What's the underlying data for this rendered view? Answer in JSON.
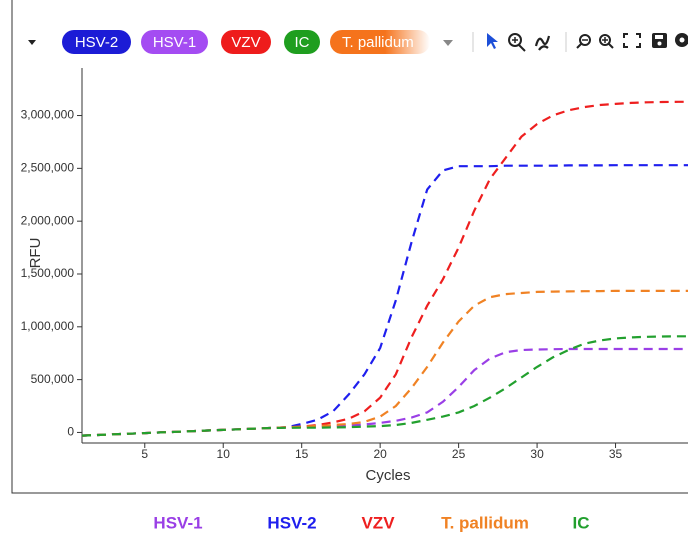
{
  "toolbar": {
    "chips": [
      {
        "label": "HSV-2",
        "color": "#1c1cd6"
      },
      {
        "label": "HSV-1",
        "color": "#a44cf2"
      },
      {
        "label": "VZV",
        "color": "#ee1c1c"
      },
      {
        "label": "IC",
        "color": "#1f9e1f"
      },
      {
        "label": "T. pallidum",
        "color": "#f5731c"
      }
    ]
  },
  "chart_data": {
    "type": "line",
    "x_label": "Cycles",
    "y_label": "RFU",
    "x": [
      1,
      2,
      3,
      4,
      5,
      6,
      7,
      8,
      9,
      10,
      11,
      12,
      13,
      14,
      15,
      16,
      17,
      18,
      19,
      20,
      21,
      22,
      23,
      24,
      25,
      26,
      27,
      28,
      29,
      30,
      31,
      32,
      33,
      34,
      35,
      36,
      37,
      38,
      39,
      40
    ],
    "xlim": [
      1,
      40
    ],
    "xticks": [
      5,
      10,
      15,
      20,
      25,
      30,
      35
    ],
    "ylim": [
      -100000,
      3450000
    ],
    "yticks": [
      0,
      {
        "value": 500000,
        "label": "500,000"
      },
      {
        "value": 1000000,
        "label": "1,000,000"
      },
      {
        "value": 1500000,
        "label": "1,500,000"
      },
      {
        "value": 2000000,
        "label": "2,000,000"
      },
      {
        "value": 2500000,
        "label": "2,500,000"
      },
      {
        "value": 3000000,
        "label": "3,000,000"
      }
    ],
    "series": [
      {
        "name": "HSV-1",
        "color": "#9a3fe6",
        "values": [
          -30000,
          -24000,
          -18000,
          -12000,
          -6000,
          0,
          6000,
          12000,
          18000,
          24000,
          30000,
          36000,
          42000,
          48000,
          54000,
          55000,
          60000,
          65000,
          75000,
          90000,
          110000,
          140000,
          190000,
          290000,
          430000,
          590000,
          700000,
          760000,
          780000,
          785000,
          788000,
          790000,
          790000,
          790000,
          790000,
          790000,
          790000,
          790000,
          790000,
          790000
        ]
      },
      {
        "name": "HSV-2",
        "color": "#1f1fee",
        "values": [
          -30000,
          -24000,
          -18000,
          -12000,
          -6000,
          0,
          6000,
          12000,
          18000,
          24000,
          30000,
          36000,
          42000,
          48000,
          80000,
          120000,
          200000,
          360000,
          550000,
          800000,
          1250000,
          1800000,
          2300000,
          2480000,
          2520000,
          2520000,
          2520000,
          2525000,
          2525000,
          2525000,
          2525000,
          2528000,
          2528000,
          2528000,
          2530000,
          2530000,
          2530000,
          2530000,
          2530000,
          2530000
        ]
      },
      {
        "name": "VZV",
        "color": "#ee1f1f",
        "values": [
          -30000,
          -24000,
          -18000,
          -12000,
          -6000,
          0,
          6000,
          12000,
          18000,
          24000,
          30000,
          36000,
          42000,
          48000,
          54000,
          70000,
          95000,
          130000,
          200000,
          330000,
          550000,
          900000,
          1200000,
          1450000,
          1750000,
          2100000,
          2400000,
          2600000,
          2800000,
          2920000,
          3000000,
          3050000,
          3080000,
          3100000,
          3110000,
          3120000,
          3125000,
          3128000,
          3130000,
          3130000
        ]
      },
      {
        "name": "T. pallidum",
        "color": "#f08224",
        "values": [
          -30000,
          -24000,
          -18000,
          -12000,
          -6000,
          0,
          6000,
          12000,
          18000,
          24000,
          30000,
          36000,
          42000,
          48000,
          54000,
          60000,
          70000,
          80000,
          100000,
          150000,
          250000,
          420000,
          620000,
          850000,
          1050000,
          1200000,
          1280000,
          1310000,
          1320000,
          1330000,
          1333000,
          1335000,
          1337000,
          1338000,
          1340000,
          1340000,
          1340000,
          1340000,
          1340000,
          1340000
        ]
      },
      {
        "name": "IC",
        "color": "#22a02e",
        "values": [
          -30000,
          -24000,
          -18000,
          -12000,
          -6000,
          0,
          6000,
          12000,
          18000,
          24000,
          30000,
          36000,
          42000,
          44000,
          45000,
          45000,
          48000,
          50000,
          55000,
          60000,
          70000,
          90000,
          120000,
          150000,
          190000,
          250000,
          330000,
          420000,
          520000,
          620000,
          710000,
          780000,
          840000,
          870000,
          890000,
          900000,
          905000,
          908000,
          910000,
          910000
        ]
      }
    ]
  }
}
